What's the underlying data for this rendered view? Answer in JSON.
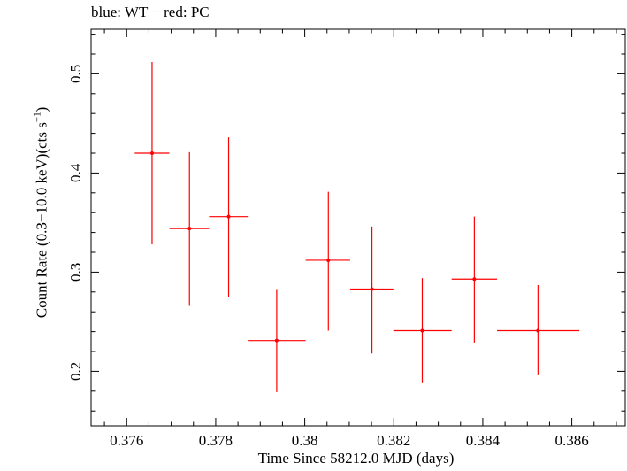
{
  "chart_data": {
    "type": "scatter",
    "title": "blue: WT − red: PC",
    "xlabel": "Time Since 58212.0 MJD (days)",
    "ylabel_main": "Count Rate (0.3−10.0 keV)(cts s",
    "ylabel_sup": "−1",
    "ylabel_end": ")",
    "xlim": [
      0.3752,
      0.3872
    ],
    "ylim": [
      0.145,
      0.545
    ],
    "xticks": [
      0.376,
      0.378,
      0.38,
      0.382,
      0.384,
      0.386
    ],
    "xtick_labels": [
      "0.376",
      "0.378",
      "0.38",
      "0.382",
      "0.384",
      "0.386"
    ],
    "yticks": [
      0.2,
      0.3,
      0.4,
      0.5
    ],
    "ytick_labels": [
      "0.2",
      "0.3",
      "0.4",
      "0.5"
    ],
    "grid": false,
    "series": [
      {
        "color": "#ff0000",
        "points": [
          {
            "x": 0.37657,
            "xlo": 0.37618,
            "xhi": 0.37696,
            "y": 0.42,
            "ylo": 0.328,
            "yhi": 0.512
          },
          {
            "x": 0.37741,
            "xlo": 0.37696,
            "xhi": 0.37785,
            "y": 0.344,
            "ylo": 0.266,
            "yhi": 0.421
          },
          {
            "x": 0.37829,
            "xlo": 0.37785,
            "xhi": 0.37872,
            "y": 0.356,
            "ylo": 0.275,
            "yhi": 0.436
          },
          {
            "x": 0.37937,
            "xlo": 0.37872,
            "xhi": 0.38002,
            "y": 0.231,
            "ylo": 0.179,
            "yhi": 0.283
          },
          {
            "x": 0.38053,
            "xlo": 0.38002,
            "xhi": 0.38102,
            "y": 0.312,
            "ylo": 0.241,
            "yhi": 0.381
          },
          {
            "x": 0.38151,
            "xlo": 0.38102,
            "xhi": 0.38199,
            "y": 0.283,
            "ylo": 0.218,
            "yhi": 0.346
          },
          {
            "x": 0.38264,
            "xlo": 0.38199,
            "xhi": 0.3833,
            "y": 0.241,
            "ylo": 0.188,
            "yhi": 0.294
          },
          {
            "x": 0.38381,
            "xlo": 0.3833,
            "xhi": 0.38432,
            "y": 0.293,
            "ylo": 0.229,
            "yhi": 0.356
          },
          {
            "x": 0.38524,
            "xlo": 0.38432,
            "xhi": 0.38617,
            "y": 0.241,
            "ylo": 0.196,
            "yhi": 0.287
          }
        ]
      }
    ]
  }
}
